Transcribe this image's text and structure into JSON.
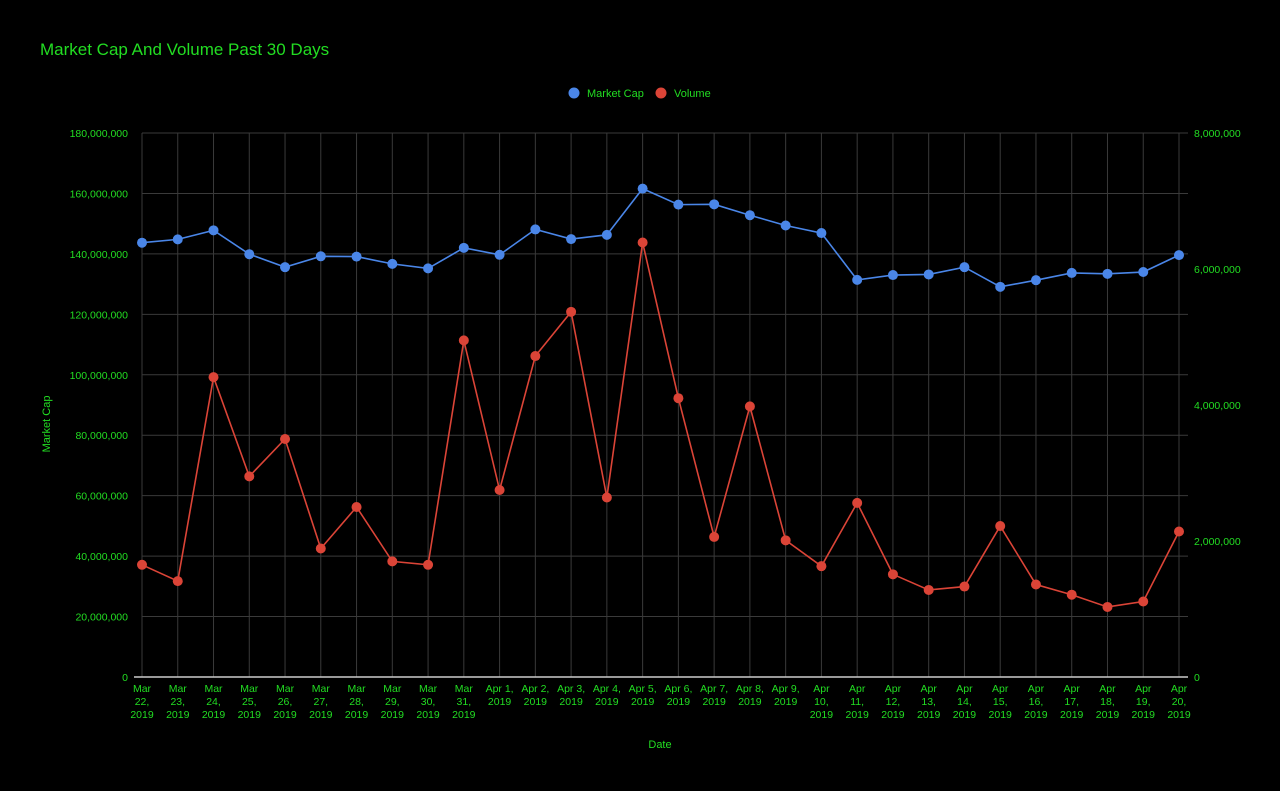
{
  "chart_data": {
    "type": "line",
    "title": "Market Cap And Volume Past 30 Days",
    "xlabel": "Date",
    "ylabel": "Market Cap",
    "y2label": "",
    "ylim": [
      0,
      180000000
    ],
    "y2lim": [
      0,
      8000000
    ],
    "y_ticks": [
      "0",
      "20,000,000",
      "40,000,000",
      "60,000,000",
      "80,000,000",
      "100,000,000",
      "120,000,000",
      "140,000,000",
      "160,000,000",
      "180,000,000"
    ],
    "y2_ticks": [
      "0",
      "2,000,000",
      "4,000,000",
      "6,000,000",
      "8,000,000"
    ],
    "grid": true,
    "legend_position": "top-center",
    "categories": [
      "Mar 22, 2019",
      "Mar 23, 2019",
      "Mar 24, 2019",
      "Mar 25, 2019",
      "Mar 26, 2019",
      "Mar 27, 2019",
      "Mar 28, 2019",
      "Mar 29, 2019",
      "Mar 30, 2019",
      "Mar 31, 2019",
      "Apr 1, 2019",
      "Apr 2, 2019",
      "Apr 3, 2019",
      "Apr 4, 2019",
      "Apr 5, 2019",
      "Apr 6, 2019",
      "Apr 7, 2019",
      "Apr 8, 2019",
      "Apr 9, 2019",
      "Apr 10, 2019",
      "Apr 11, 2019",
      "Apr 12, 2019",
      "Apr 13, 2019",
      "Apr 14, 2019",
      "Apr 15, 2019",
      "Apr 16, 2019",
      "Apr 17, 2019",
      "Apr 18, 2019",
      "Apr 19, 2019",
      "Apr 20, 2019"
    ],
    "category_labels": [
      [
        "Mar",
        "22,",
        "2019"
      ],
      [
        "Mar",
        "23,",
        "2019"
      ],
      [
        "Mar",
        "24,",
        "2019"
      ],
      [
        "Mar",
        "25,",
        "2019"
      ],
      [
        "Mar",
        "26,",
        "2019"
      ],
      [
        "Mar",
        "27,",
        "2019"
      ],
      [
        "Mar",
        "28,",
        "2019"
      ],
      [
        "Mar",
        "29,",
        "2019"
      ],
      [
        "Mar",
        "30,",
        "2019"
      ],
      [
        "Mar",
        "31,",
        "2019"
      ],
      [
        "Apr 1,",
        "2019"
      ],
      [
        "Apr 2,",
        "2019"
      ],
      [
        "Apr 3,",
        "2019"
      ],
      [
        "Apr 4,",
        "2019"
      ],
      [
        "Apr 5,",
        "2019"
      ],
      [
        "Apr 6,",
        "2019"
      ],
      [
        "Apr 7,",
        "2019"
      ],
      [
        "Apr 8,",
        "2019"
      ],
      [
        "Apr 9,",
        "2019"
      ],
      [
        "Apr",
        "10,",
        "2019"
      ],
      [
        "Apr",
        "11,",
        "2019"
      ],
      [
        "Apr",
        "12,",
        "2019"
      ],
      [
        "Apr",
        "13,",
        "2019"
      ],
      [
        "Apr",
        "14,",
        "2019"
      ],
      [
        "Apr",
        "15,",
        "2019"
      ],
      [
        "Apr",
        "16,",
        "2019"
      ],
      [
        "Apr",
        "17,",
        "2019"
      ],
      [
        "Apr",
        "18,",
        "2019"
      ],
      [
        "Apr",
        "19,",
        "2019"
      ],
      [
        "Apr",
        "20,",
        "2019"
      ]
    ],
    "series": [
      {
        "name": "Market Cap",
        "axis": "left",
        "color": "#4a86e8",
        "values": [
          143700000,
          144800000,
          147800000,
          139900000,
          135600000,
          139200000,
          139100000,
          136700000,
          135200000,
          142000000,
          139700000,
          148100000,
          144900000,
          146300000,
          161600000,
          156300000,
          156400000,
          152800000,
          149400000,
          146900000,
          131400000,
          133000000,
          133200000,
          135600000,
          129100000,
          131300000,
          133700000,
          133400000,
          134000000,
          139600000
        ]
      },
      {
        "name": "Volume",
        "axis": "right",
        "color": "#db4437",
        "values": [
          1650000,
          1410000,
          4410000,
          2950000,
          3500000,
          1890000,
          2500000,
          1700000,
          1650000,
          4950000,
          2750000,
          4720000,
          5370000,
          2640000,
          6390000,
          4100000,
          2060000,
          3980000,
          2010000,
          1630000,
          2560000,
          1510000,
          1280000,
          1330000,
          2220000,
          1360000,
          1210000,
          1030000,
          1110000,
          2140000
        ]
      }
    ]
  }
}
